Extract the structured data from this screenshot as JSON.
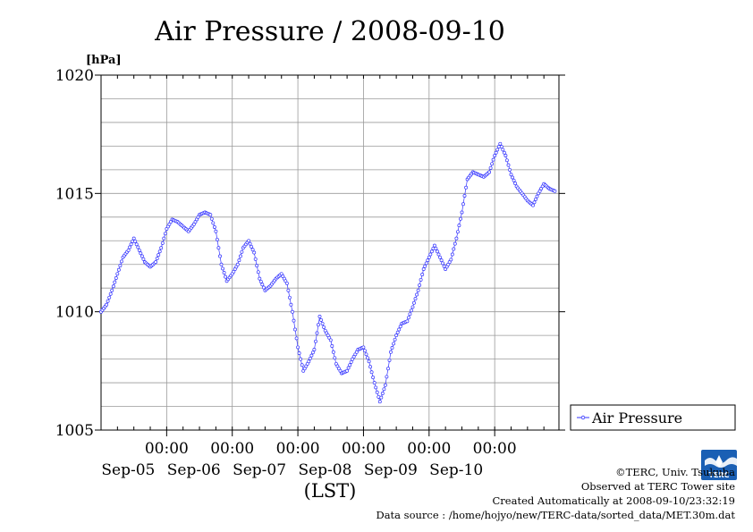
{
  "chart_data": {
    "type": "line",
    "title": "Air Pressure / 2008-09-10",
    "ylabel": "[hPa]",
    "xlabel": "(LST)",
    "ylim": [
      1005,
      1020
    ],
    "yticks": [
      1005,
      1010,
      1015,
      1020
    ],
    "xlim": [
      "2008-09-04 00:00",
      "2008-09-10 23:30"
    ],
    "xticks": [
      {
        "date": "2008-09-05 00:00",
        "time": "00:00",
        "day": "Sep-05"
      },
      {
        "date": "2008-09-06 00:00",
        "time": "00:00",
        "day": "Sep-06"
      },
      {
        "date": "2008-09-07 00:00",
        "time": "00:00",
        "day": "Sep-07"
      },
      {
        "date": "2008-09-08 00:00",
        "time": "00:00",
        "day": "Sep-08"
      },
      {
        "date": "2008-09-09 00:00",
        "time": "00:00",
        "day": "Sep-09"
      },
      {
        "date": "2008-09-10 00:00",
        "time": "00:00",
        "day": "Sep-10"
      }
    ],
    "grid": true,
    "legend": "right",
    "series": [
      {
        "name": "Air Pressure",
        "color": "#3333ff",
        "points": [
          [
            "2008-09-04 00:00",
            1010.0
          ],
          [
            "2008-09-04 02:00",
            1010.3
          ],
          [
            "2008-09-04 04:00",
            1010.9
          ],
          [
            "2008-09-04 06:00",
            1011.6
          ],
          [
            "2008-09-04 08:00",
            1012.3
          ],
          [
            "2008-09-04 10:00",
            1012.6
          ],
          [
            "2008-09-04 12:00",
            1013.1
          ],
          [
            "2008-09-04 14:00",
            1012.6
          ],
          [
            "2008-09-04 16:00",
            1012.1
          ],
          [
            "2008-09-04 18:00",
            1011.9
          ],
          [
            "2008-09-04 20:00",
            1012.1
          ],
          [
            "2008-09-04 22:00",
            1012.7
          ],
          [
            "2008-09-05 00:00",
            1013.5
          ],
          [
            "2008-09-05 02:00",
            1013.9
          ],
          [
            "2008-09-05 04:00",
            1013.8
          ],
          [
            "2008-09-05 06:00",
            1013.6
          ],
          [
            "2008-09-05 08:00",
            1013.4
          ],
          [
            "2008-09-05 10:00",
            1013.7
          ],
          [
            "2008-09-05 12:00",
            1014.1
          ],
          [
            "2008-09-05 14:00",
            1014.2
          ],
          [
            "2008-09-05 16:00",
            1014.1
          ],
          [
            "2008-09-05 18:00",
            1013.4
          ],
          [
            "2008-09-05 20:00",
            1012.0
          ],
          [
            "2008-09-05 22:00",
            1011.3
          ],
          [
            "2008-09-06 00:00",
            1011.6
          ],
          [
            "2008-09-06 02:00",
            1012.0
          ],
          [
            "2008-09-06 04:00",
            1012.7
          ],
          [
            "2008-09-06 06:00",
            1013.0
          ],
          [
            "2008-09-06 08:00",
            1012.5
          ],
          [
            "2008-09-06 10:00",
            1011.4
          ],
          [
            "2008-09-06 12:00",
            1010.9
          ],
          [
            "2008-09-06 14:00",
            1011.1
          ],
          [
            "2008-09-06 16:00",
            1011.4
          ],
          [
            "2008-09-06 18:00",
            1011.6
          ],
          [
            "2008-09-06 20:00",
            1011.2
          ],
          [
            "2008-09-06 22:00",
            1010.0
          ],
          [
            "2008-09-07 00:00",
            1008.5
          ],
          [
            "2008-09-07 02:00",
            1007.5
          ],
          [
            "2008-09-07 04:00",
            1007.9
          ],
          [
            "2008-09-07 06:00",
            1008.4
          ],
          [
            "2008-09-07 08:00",
            1009.8
          ],
          [
            "2008-09-07 10:00",
            1009.2
          ],
          [
            "2008-09-07 12:00",
            1008.8
          ],
          [
            "2008-09-07 14:00",
            1007.8
          ],
          [
            "2008-09-07 16:00",
            1007.4
          ],
          [
            "2008-09-07 18:00",
            1007.5
          ],
          [
            "2008-09-07 20:00",
            1008.0
          ],
          [
            "2008-09-07 22:00",
            1008.4
          ],
          [
            "2008-09-08 00:00",
            1008.5
          ],
          [
            "2008-09-08 02:00",
            1007.9
          ],
          [
            "2008-09-08 04:00",
            1007.0
          ],
          [
            "2008-09-08 06:00",
            1006.2
          ],
          [
            "2008-09-08 08:00",
            1006.9
          ],
          [
            "2008-09-08 10:00",
            1008.3
          ],
          [
            "2008-09-08 12:00",
            1009.0
          ],
          [
            "2008-09-08 14:00",
            1009.5
          ],
          [
            "2008-09-08 16:00",
            1009.6
          ],
          [
            "2008-09-08 18:00",
            1010.2
          ],
          [
            "2008-09-08 20:00",
            1010.9
          ],
          [
            "2008-09-08 22:00",
            1011.8
          ],
          [
            "2008-09-09 00:00",
            1012.3
          ],
          [
            "2008-09-09 02:00",
            1012.8
          ],
          [
            "2008-09-09 04:00",
            1012.3
          ],
          [
            "2008-09-09 06:00",
            1011.8
          ],
          [
            "2008-09-09 08:00",
            1012.2
          ],
          [
            "2008-09-09 10:00",
            1013.1
          ],
          [
            "2008-09-09 12:00",
            1014.2
          ],
          [
            "2008-09-09 14:00",
            1015.6
          ],
          [
            "2008-09-09 16:00",
            1015.9
          ],
          [
            "2008-09-09 18:00",
            1015.8
          ],
          [
            "2008-09-09 20:00",
            1015.7
          ],
          [
            "2008-09-09 22:00",
            1015.9
          ],
          [
            "2008-09-10 00:00",
            1016.6
          ],
          [
            "2008-09-10 02:00",
            1017.1
          ],
          [
            "2008-09-10 04:00",
            1016.6
          ],
          [
            "2008-09-10 06:00",
            1015.8
          ],
          [
            "2008-09-10 08:00",
            1015.3
          ],
          [
            "2008-09-10 10:00",
            1015.0
          ],
          [
            "2008-09-10 12:00",
            1014.7
          ],
          [
            "2008-09-10 14:00",
            1014.5
          ],
          [
            "2008-09-10 16:00",
            1015.0
          ],
          [
            "2008-09-10 18:00",
            1015.4
          ],
          [
            "2008-09-10 20:00",
            1015.2
          ],
          [
            "2008-09-10 22:00",
            1015.1
          ]
        ]
      }
    ]
  },
  "credits": {
    "copyright": "©TERC, Univ. Tsukuba",
    "observed": "Observed at TERC Tower site",
    "created": "Created Automatically at 2008-09-10/23:32:19",
    "source": "Data source : /home/hojyo/new/TERC-data/sorted_data/MET.30m.dat"
  },
  "logo": {
    "text": "TERC",
    "color": "#1a5fb4"
  }
}
